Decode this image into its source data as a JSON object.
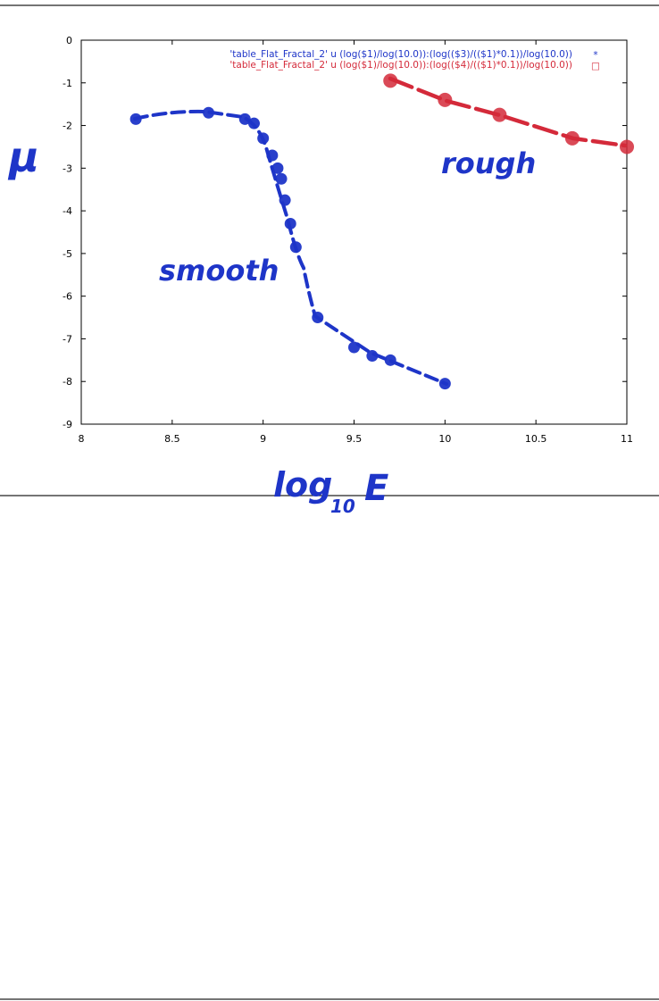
{
  "chart_data": {
    "type": "scatter",
    "xlim": [
      8,
      11
    ],
    "ylim": [
      -9,
      0
    ],
    "x_ticks": [
      "8",
      "8.5",
      "9",
      "9.5",
      "10",
      "10.5",
      "11"
    ],
    "y_ticks": [
      "0",
      "-1",
      "-2",
      "-3",
      "-4",
      "-5",
      "-6",
      "-7",
      "-8",
      "-9"
    ],
    "x_tick_values": [
      8,
      8.5,
      9,
      9.5,
      10,
      10.5,
      11
    ],
    "y_tick_values": [
      0,
      -1,
      -2,
      -3,
      -4,
      -5,
      -6,
      -7,
      -8,
      -9
    ],
    "grid": false,
    "legend_placement": "top-right",
    "series": [
      {
        "name": "'table_Flat_Fractal_2' u (log($1)/log(10.0)):(log(($3)/(($1)*0.1))/log(10.0))",
        "color": "#1e35c8",
        "x": [
          8.3,
          8.7,
          8.9,
          8.95,
          9.0,
          9.05,
          9.08,
          9.1,
          9.12,
          9.15,
          9.18,
          9.3,
          9.5,
          9.6,
          9.7,
          10.0
        ],
        "y": [
          -1.85,
          -1.7,
          -1.85,
          -1.95,
          -2.3,
          -2.7,
          -3.0,
          -3.25,
          -3.75,
          -4.3,
          -4.85,
          -6.5,
          -7.2,
          -7.4,
          -7.5,
          -8.05
        ]
      },
      {
        "name": "'table_Flat_Fractal_2' u (log($1)/log(10.0)):(log(($4)/(($1)*0.1))/log(10.0))",
        "color": "#d42a3a",
        "x": [
          9.7,
          10.0,
          10.3,
          10.7,
          11.0
        ],
        "y": [
          -0.95,
          -1.4,
          -1.75,
          -2.3,
          -2.5
        ]
      }
    ],
    "legend_markers": [
      "*",
      "□"
    ]
  },
  "annotations": {
    "mu_label": "μ",
    "xlabel_main": "log",
    "xlabel_sub": "10",
    "xlabel_var": "E",
    "smooth_label": "smooth",
    "rough_label": "rough"
  }
}
